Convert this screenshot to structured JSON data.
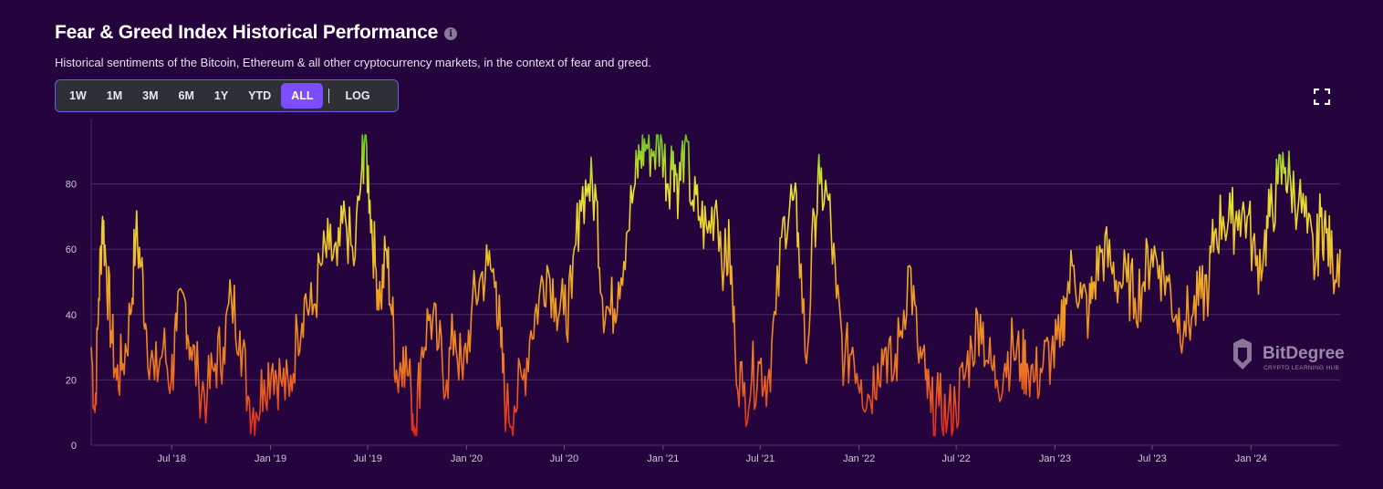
{
  "header": {
    "title": "Fear & Greed Index Historical Performance",
    "subtitle": "Historical sentiments of the Bitcoin, Ethereum & all other cryptocurrency markets, in the context of fear and greed."
  },
  "range_selector": {
    "buttons": [
      "1W",
      "1M",
      "3M",
      "6M",
      "1Y",
      "YTD",
      "ALL"
    ],
    "active": "ALL",
    "log_label": "LOG"
  },
  "watermark": {
    "name": "BitDegree",
    "tagline": "CRYPTO LEARNING HUB"
  },
  "colors": {
    "background": "#25043d",
    "accent": "#7b4dff",
    "fear": "#e02020",
    "neutral": "#f0a020",
    "greed": "#e6e630",
    "extreme_greed": "#4cc020"
  },
  "chart_data": {
    "type": "line",
    "title": "Fear & Greed Index Historical Performance",
    "ylim": [
      0,
      100
    ],
    "yticks": [
      0,
      20,
      40,
      60,
      80
    ],
    "grid": "horizontal",
    "xlim": [
      "2018-02-01",
      "2024-06-15"
    ],
    "xticks": [
      {
        "date": "2018-07-01",
        "label": "Jul '18"
      },
      {
        "date": "2019-01-01",
        "label": "Jan '19"
      },
      {
        "date": "2019-07-01",
        "label": "Jul '19"
      },
      {
        "date": "2020-01-01",
        "label": "Jan '20"
      },
      {
        "date": "2020-07-01",
        "label": "Jul '20"
      },
      {
        "date": "2021-01-01",
        "label": "Jan '21"
      },
      {
        "date": "2021-07-01",
        "label": "Jul '21"
      },
      {
        "date": "2022-01-01",
        "label": "Jan '22"
      },
      {
        "date": "2022-07-01",
        "label": "Jul '22"
      },
      {
        "date": "2023-01-01",
        "label": "Jan '23"
      },
      {
        "date": "2023-07-01",
        "label": "Jul '23"
      },
      {
        "date": "2024-01-01",
        "label": "Jan '24"
      }
    ],
    "series": [
      {
        "points": [
          [
            "2018-02-01",
            30
          ],
          [
            "2018-02-08",
            10
          ],
          [
            "2018-02-15",
            45
          ],
          [
            "2018-02-22",
            70
          ],
          [
            "2018-03-01",
            55
          ],
          [
            "2018-03-10",
            35
          ],
          [
            "2018-03-20",
            20
          ],
          [
            "2018-04-01",
            25
          ],
          [
            "2018-04-15",
            40
          ],
          [
            "2018-04-25",
            65
          ],
          [
            "2018-05-05",
            55
          ],
          [
            "2018-05-15",
            35
          ],
          [
            "2018-05-30",
            20
          ],
          [
            "2018-06-15",
            30
          ],
          [
            "2018-06-30",
            20
          ],
          [
            "2018-07-10",
            35
          ],
          [
            "2018-07-25",
            45
          ],
          [
            "2018-08-05",
            30
          ],
          [
            "2018-08-20",
            20
          ],
          [
            "2018-09-05",
            15
          ],
          [
            "2018-09-20",
            25
          ],
          [
            "2018-10-05",
            30
          ],
          [
            "2018-10-20",
            45
          ],
          [
            "2018-11-05",
            35
          ],
          [
            "2018-11-20",
            15
          ],
          [
            "2018-12-05",
            10
          ],
          [
            "2018-12-20",
            20
          ],
          [
            "2019-01-05",
            25
          ],
          [
            "2019-01-20",
            20
          ],
          [
            "2019-02-05",
            15
          ],
          [
            "2019-02-20",
            35
          ],
          [
            "2019-03-05",
            45
          ],
          [
            "2019-03-20",
            40
          ],
          [
            "2019-04-05",
            55
          ],
          [
            "2019-04-20",
            60
          ],
          [
            "2019-05-05",
            55
          ],
          [
            "2019-05-20",
            70
          ],
          [
            "2019-06-05",
            55
          ],
          [
            "2019-06-20",
            85
          ],
          [
            "2019-06-26",
            95
          ],
          [
            "2019-07-05",
            75
          ],
          [
            "2019-07-15",
            55
          ],
          [
            "2019-07-25",
            45
          ],
          [
            "2019-08-05",
            60
          ],
          [
            "2019-08-15",
            40
          ],
          [
            "2019-08-25",
            20
          ],
          [
            "2019-09-05",
            30
          ],
          [
            "2019-09-20",
            15
          ],
          [
            "2019-09-28",
            5
          ],
          [
            "2019-10-10",
            30
          ],
          [
            "2019-10-25",
            40
          ],
          [
            "2019-11-10",
            30
          ],
          [
            "2019-11-25",
            20
          ],
          [
            "2019-12-10",
            35
          ],
          [
            "2019-12-25",
            20
          ],
          [
            "2020-01-10",
            40
          ],
          [
            "2020-01-25",
            50
          ],
          [
            "2020-02-10",
            55
          ],
          [
            "2020-02-25",
            50
          ],
          [
            "2020-03-05",
            30
          ],
          [
            "2020-03-15",
            10
          ],
          [
            "2020-03-30",
            12
          ],
          [
            "2020-04-15",
            20
          ],
          [
            "2020-04-30",
            35
          ],
          [
            "2020-05-15",
            45
          ],
          [
            "2020-05-30",
            55
          ],
          [
            "2020-06-15",
            45
          ],
          [
            "2020-06-30",
            40
          ],
          [
            "2020-07-15",
            45
          ],
          [
            "2020-07-30",
            75
          ],
          [
            "2020-08-15",
            80
          ],
          [
            "2020-08-30",
            75
          ],
          [
            "2020-09-10",
            45
          ],
          [
            "2020-09-25",
            40
          ],
          [
            "2020-10-10",
            50
          ],
          [
            "2020-10-25",
            65
          ],
          [
            "2020-11-10",
            80
          ],
          [
            "2020-11-20",
            90
          ],
          [
            "2020-12-01",
            92
          ],
          [
            "2020-12-15",
            90
          ],
          [
            "2020-12-30",
            93
          ],
          [
            "2021-01-10",
            80
          ],
          [
            "2021-01-20",
            90
          ],
          [
            "2021-01-30",
            78
          ],
          [
            "2021-02-10",
            92
          ],
          [
            "2021-02-25",
            75
          ],
          [
            "2021-03-10",
            70
          ],
          [
            "2021-03-25",
            65
          ],
          [
            "2021-04-10",
            75
          ],
          [
            "2021-04-25",
            55
          ],
          [
            "2021-05-05",
            60
          ],
          [
            "2021-05-15",
            30
          ],
          [
            "2021-05-30",
            15
          ],
          [
            "2021-06-15",
            20
          ],
          [
            "2021-06-30",
            25
          ],
          [
            "2021-07-15",
            20
          ],
          [
            "2021-07-30",
            40
          ],
          [
            "2021-08-15",
            70
          ],
          [
            "2021-08-30",
            75
          ],
          [
            "2021-09-10",
            65
          ],
          [
            "2021-09-25",
            25
          ],
          [
            "2021-10-10",
            70
          ],
          [
            "2021-10-20",
            80
          ],
          [
            "2021-11-05",
            75
          ],
          [
            "2021-11-20",
            45
          ],
          [
            "2021-12-05",
            25
          ],
          [
            "2021-12-20",
            30
          ],
          [
            "2022-01-05",
            20
          ],
          [
            "2022-01-20",
            15
          ],
          [
            "2022-02-05",
            25
          ],
          [
            "2022-02-20",
            30
          ],
          [
            "2022-03-05",
            20
          ],
          [
            "2022-03-20",
            35
          ],
          [
            "2022-04-05",
            55
          ],
          [
            "2022-04-20",
            30
          ],
          [
            "2022-05-05",
            20
          ],
          [
            "2022-05-15",
            10
          ],
          [
            "2022-05-30",
            12
          ],
          [
            "2022-06-15",
            8
          ],
          [
            "2022-06-30",
            12
          ],
          [
            "2022-07-15",
            20
          ],
          [
            "2022-07-30",
            30
          ],
          [
            "2022-08-15",
            40
          ],
          [
            "2022-08-30",
            25
          ],
          [
            "2022-09-15",
            20
          ],
          [
            "2022-09-30",
            25
          ],
          [
            "2022-10-15",
            30
          ],
          [
            "2022-10-30",
            25
          ],
          [
            "2022-11-10",
            25
          ],
          [
            "2022-11-25",
            20
          ],
          [
            "2022-12-10",
            25
          ],
          [
            "2022-12-25",
            28
          ],
          [
            "2023-01-10",
            30
          ],
          [
            "2023-01-20",
            45
          ],
          [
            "2023-02-05",
            55
          ],
          [
            "2023-02-20",
            45
          ],
          [
            "2023-03-05",
            40
          ],
          [
            "2023-03-15",
            50
          ],
          [
            "2023-03-30",
            60
          ],
          [
            "2023-04-15",
            55
          ],
          [
            "2023-04-30",
            50
          ],
          [
            "2023-05-15",
            50
          ],
          [
            "2023-05-30",
            45
          ],
          [
            "2023-06-15",
            50
          ],
          [
            "2023-06-30",
            60
          ],
          [
            "2023-07-15",
            55
          ],
          [
            "2023-07-30",
            50
          ],
          [
            "2023-08-15",
            40
          ],
          [
            "2023-08-30",
            38
          ],
          [
            "2023-09-15",
            40
          ],
          [
            "2023-09-30",
            45
          ],
          [
            "2023-10-15",
            50
          ],
          [
            "2023-10-25",
            65
          ],
          [
            "2023-11-10",
            70
          ],
          [
            "2023-11-25",
            68
          ],
          [
            "2023-12-10",
            72
          ],
          [
            "2023-12-25",
            70
          ],
          [
            "2024-01-10",
            55
          ],
          [
            "2024-01-25",
            60
          ],
          [
            "2024-02-05",
            70
          ],
          [
            "2024-02-20",
            80
          ],
          [
            "2024-03-05",
            85
          ],
          [
            "2024-03-15",
            80
          ],
          [
            "2024-03-30",
            75
          ],
          [
            "2024-04-15",
            65
          ],
          [
            "2024-04-30",
            55
          ],
          [
            "2024-05-10",
            70
          ],
          [
            "2024-05-20",
            65
          ],
          [
            "2024-06-01",
            55
          ],
          [
            "2024-06-15",
            60
          ]
        ]
      }
    ]
  }
}
